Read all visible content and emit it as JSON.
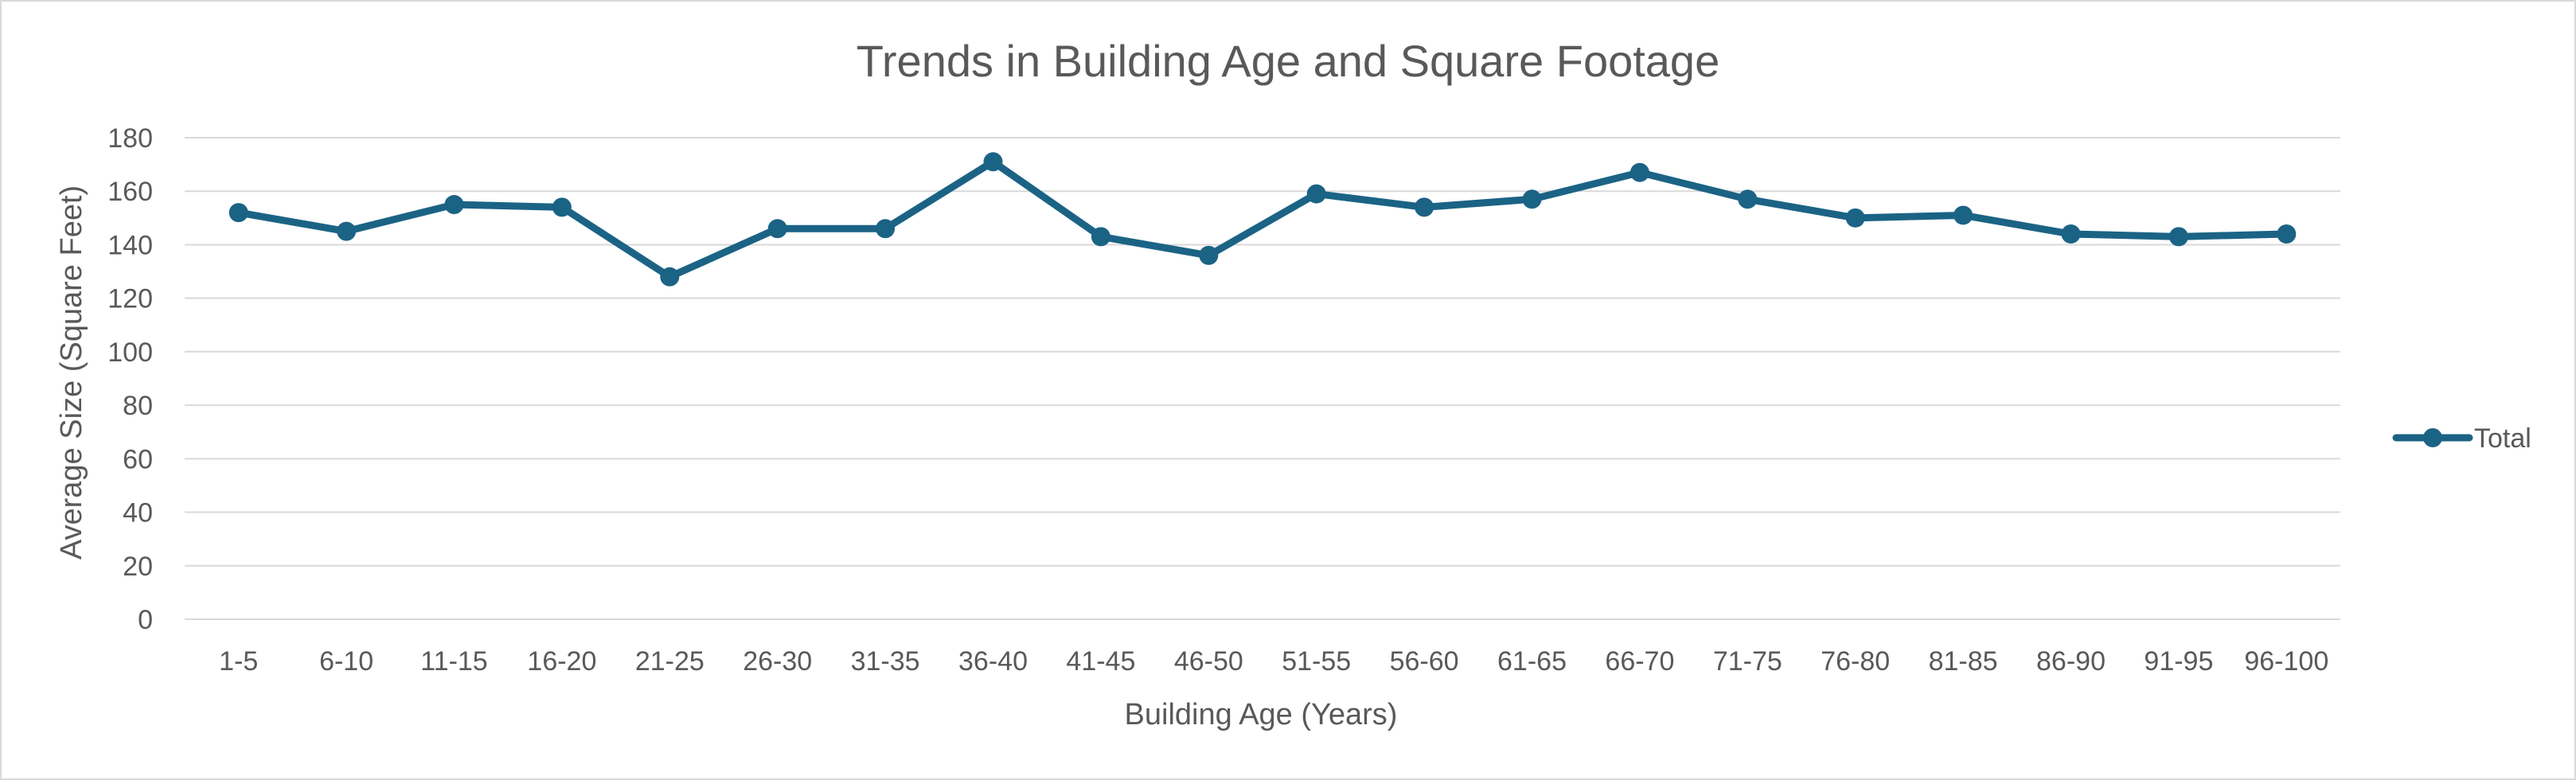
{
  "chart_data": {
    "type": "line",
    "title": "Trends in Building Age and Square Footage",
    "xlabel": "Building Age (Years)",
    "ylabel": "Average Size (Square Feet)",
    "ylim": [
      0,
      180
    ],
    "yticks": [
      0,
      20,
      40,
      60,
      80,
      100,
      120,
      140,
      160,
      180
    ],
    "grid": true,
    "legend_position": "right",
    "categories": [
      "1-5",
      "6-10",
      "11-15",
      "16-20",
      "21-25",
      "26-30",
      "31-35",
      "36-40",
      "41-45",
      "46-50",
      "51-55",
      "56-60",
      "61-65",
      "66-70",
      "71-75",
      "76-80",
      "81-85",
      "86-90",
      "91-95",
      "96-100"
    ],
    "series": [
      {
        "name": "Total",
        "color": "#1b6385",
        "values": [
          152,
          145,
          155,
          154,
          128,
          146,
          146,
          171,
          143,
          136,
          159,
          154,
          157,
          167,
          157,
          150,
          151,
          144,
          143,
          144
        ]
      }
    ]
  }
}
